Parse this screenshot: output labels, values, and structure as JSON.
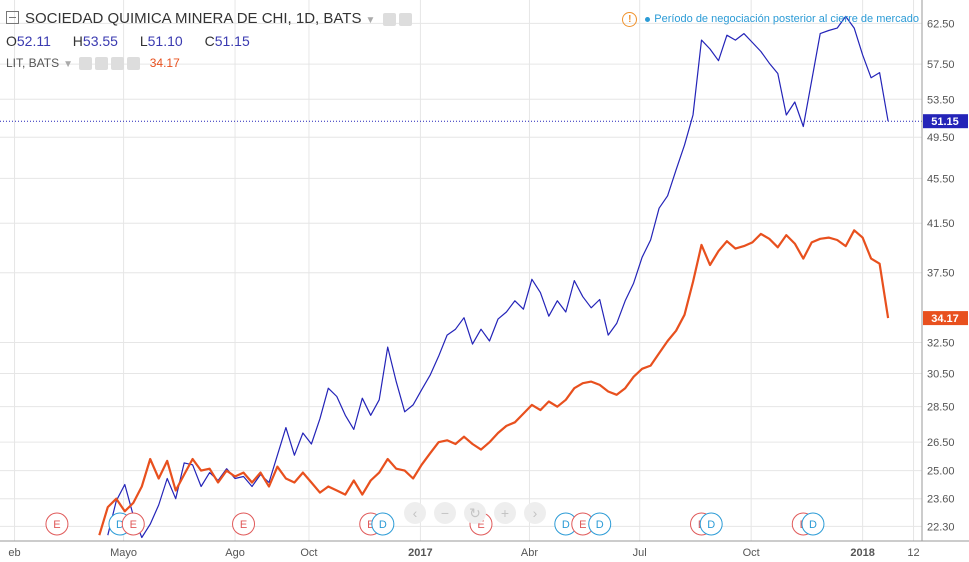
{
  "header": {
    "title": "SOCIEDAD QUIMICA MINERA DE CHI, 1D, BATS",
    "ohlc": {
      "o_label": "O",
      "o": "52.11",
      "h_label": "H",
      "h": "53.55",
      "l_label": "L",
      "l": "51.10",
      "c_label": "C",
      "c": "51.15"
    },
    "compare_symbol": "LIT, BATS",
    "compare_value": "34.17"
  },
  "notice": {
    "warn_glyph": "!",
    "text": "Período de negociación posterior al cierre de mercado"
  },
  "nav_icons": [
    "chevron-left-icon",
    "zoom-out-icon",
    "reset-icon",
    "zoom-in-icon",
    "chevron-right-icon"
  ],
  "nav_glyphs": [
    "‹",
    "−",
    "↻",
    "+",
    "›"
  ],
  "colors": {
    "sqm": "#2424b8",
    "lit": "#e8501e",
    "grid": "#e6e6e6",
    "event_e": "#e05a5a",
    "event_d": "#2b9bd6"
  },
  "chart_data": {
    "type": "line",
    "title": "",
    "x_tick_labels": [
      "eb",
      "Mayo",
      "Ago",
      "Oct",
      "2017",
      "Abr",
      "Jul",
      "Oct",
      "2018",
      "12"
    ],
    "y_tick_labels": [
      "62.50",
      "57.50",
      "53.50",
      "49.50",
      "45.50",
      "41.50",
      "37.50",
      "32.50",
      "30.50",
      "28.50",
      "26.50",
      "25.00",
      "23.60",
      "22.30"
    ],
    "y_axis_scale": "log",
    "ylim": [
      22.0,
      64.5
    ],
    "grid": true,
    "series": [
      {
        "name": "SOCIEDAD QUIMICA MINERA DE CHI",
        "color": "#2424b8",
        "last_label": "51.15",
        "values": [
          [
            "2016-04-18",
            21.9
          ],
          [
            "2016-04-25",
            23.5
          ],
          [
            "2016-05-02",
            24.3
          ],
          [
            "2016-05-09",
            22.8
          ],
          [
            "2016-05-16",
            21.8
          ],
          [
            "2016-05-23",
            22.4
          ],
          [
            "2016-05-30",
            23.3
          ],
          [
            "2016-06-06",
            24.6
          ],
          [
            "2016-06-13",
            23.6
          ],
          [
            "2016-06-20",
            25.4
          ],
          [
            "2016-06-27",
            25.3
          ],
          [
            "2016-07-04",
            24.2
          ],
          [
            "2016-07-11",
            24.9
          ],
          [
            "2016-07-18",
            24.5
          ],
          [
            "2016-07-25",
            25.1
          ],
          [
            "2016-08-01",
            24.6
          ],
          [
            "2016-08-08",
            24.7
          ],
          [
            "2016-08-15",
            24.2
          ],
          [
            "2016-08-22",
            24.8
          ],
          [
            "2016-08-29",
            24.4
          ],
          [
            "2016-09-05",
            25.8
          ],
          [
            "2016-09-12",
            27.3
          ],
          [
            "2016-09-19",
            25.8
          ],
          [
            "2016-09-26",
            27.0
          ],
          [
            "2016-10-03",
            26.4
          ],
          [
            "2016-10-10",
            27.8
          ],
          [
            "2016-10-17",
            29.6
          ],
          [
            "2016-10-24",
            29.1
          ],
          [
            "2016-10-31",
            28.0
          ],
          [
            "2016-11-07",
            27.2
          ],
          [
            "2016-11-14",
            29.0
          ],
          [
            "2016-11-21",
            28.0
          ],
          [
            "2016-11-28",
            28.9
          ],
          [
            "2016-12-05",
            32.2
          ],
          [
            "2016-12-12",
            30.0
          ],
          [
            "2016-12-19",
            28.2
          ],
          [
            "2016-12-26",
            28.6
          ],
          [
            "2017-01-02",
            29.5
          ],
          [
            "2017-01-09",
            30.4
          ],
          [
            "2017-01-16",
            31.6
          ],
          [
            "2017-01-23",
            33.0
          ],
          [
            "2017-01-30",
            33.4
          ],
          [
            "2017-02-06",
            34.2
          ],
          [
            "2017-02-13",
            32.4
          ],
          [
            "2017-02-20",
            33.4
          ],
          [
            "2017-02-27",
            32.6
          ],
          [
            "2017-03-06",
            34.1
          ],
          [
            "2017-03-13",
            34.6
          ],
          [
            "2017-03-20",
            35.4
          ],
          [
            "2017-03-27",
            34.8
          ],
          [
            "2017-04-03",
            37.0
          ],
          [
            "2017-04-10",
            36.0
          ],
          [
            "2017-04-17",
            34.3
          ],
          [
            "2017-04-24",
            35.4
          ],
          [
            "2017-05-01",
            34.6
          ],
          [
            "2017-05-08",
            36.9
          ],
          [
            "2017-05-15",
            35.7
          ],
          [
            "2017-05-22",
            34.9
          ],
          [
            "2017-05-29",
            35.5
          ],
          [
            "2017-06-05",
            33.0
          ],
          [
            "2017-06-12",
            33.8
          ],
          [
            "2017-06-19",
            35.4
          ],
          [
            "2017-06-26",
            36.7
          ],
          [
            "2017-07-03",
            38.7
          ],
          [
            "2017-07-10",
            40.1
          ],
          [
            "2017-07-17",
            42.8
          ],
          [
            "2017-07-24",
            43.9
          ],
          [
            "2017-07-31",
            46.3
          ],
          [
            "2017-08-07",
            48.7
          ],
          [
            "2017-08-14",
            51.8
          ],
          [
            "2017-08-21",
            60.4
          ],
          [
            "2017-08-28",
            59.3
          ],
          [
            "2017-09-04",
            57.9
          ],
          [
            "2017-09-11",
            61.0
          ],
          [
            "2017-09-18",
            60.4
          ],
          [
            "2017-09-25",
            61.2
          ],
          [
            "2017-10-02",
            60.1
          ],
          [
            "2017-10-09",
            59.0
          ],
          [
            "2017-10-16",
            57.6
          ],
          [
            "2017-10-23",
            56.4
          ],
          [
            "2017-10-30",
            51.8
          ],
          [
            "2017-11-06",
            53.2
          ],
          [
            "2017-11-13",
            50.6
          ],
          [
            "2017-11-20",
            55.6
          ],
          [
            "2017-11-27",
            61.2
          ],
          [
            "2017-12-04",
            61.6
          ],
          [
            "2017-12-11",
            61.9
          ],
          [
            "2017-12-18",
            63.4
          ],
          [
            "2017-12-25",
            61.9
          ],
          [
            "2018-01-01",
            58.6
          ],
          [
            "2018-01-08",
            55.9
          ],
          [
            "2018-01-15",
            56.5
          ],
          [
            "2018-01-22",
            51.15
          ]
        ]
      },
      {
        "name": "LIT, BATS",
        "color": "#e8501e",
        "last_label": "34.17",
        "values": [
          [
            "2016-04-11",
            21.9
          ],
          [
            "2016-04-18",
            23.2
          ],
          [
            "2016-04-25",
            23.6
          ],
          [
            "2016-05-02",
            23.0
          ],
          [
            "2016-05-09",
            23.4
          ],
          [
            "2016-05-16",
            24.2
          ],
          [
            "2016-05-23",
            25.6
          ],
          [
            "2016-05-30",
            24.6
          ],
          [
            "2016-06-06",
            25.5
          ],
          [
            "2016-06-13",
            24.0
          ],
          [
            "2016-06-20",
            24.8
          ],
          [
            "2016-06-27",
            25.6
          ],
          [
            "2016-07-04",
            25.0
          ],
          [
            "2016-07-11",
            25.1
          ],
          [
            "2016-07-18",
            24.4
          ],
          [
            "2016-07-25",
            25.0
          ],
          [
            "2016-08-01",
            24.7
          ],
          [
            "2016-08-08",
            24.9
          ],
          [
            "2016-08-15",
            24.4
          ],
          [
            "2016-08-22",
            24.9
          ],
          [
            "2016-08-29",
            24.2
          ],
          [
            "2016-09-05",
            25.2
          ],
          [
            "2016-09-12",
            24.6
          ],
          [
            "2016-09-19",
            24.4
          ],
          [
            "2016-09-26",
            24.9
          ],
          [
            "2016-10-03",
            24.4
          ],
          [
            "2016-10-10",
            23.9
          ],
          [
            "2016-10-17",
            24.2
          ],
          [
            "2016-10-24",
            24.0
          ],
          [
            "2016-10-31",
            23.8
          ],
          [
            "2016-11-07",
            24.5
          ],
          [
            "2016-11-14",
            23.8
          ],
          [
            "2016-11-21",
            24.5
          ],
          [
            "2016-11-28",
            24.9
          ],
          [
            "2016-12-05",
            25.6
          ],
          [
            "2016-12-12",
            25.1
          ],
          [
            "2016-12-19",
            25.0
          ],
          [
            "2016-12-26",
            24.6
          ],
          [
            "2017-01-02",
            25.3
          ],
          [
            "2017-01-09",
            25.9
          ],
          [
            "2017-01-16",
            26.5
          ],
          [
            "2017-01-23",
            26.6
          ],
          [
            "2017-01-30",
            26.4
          ],
          [
            "2017-02-06",
            26.8
          ],
          [
            "2017-02-13",
            26.4
          ],
          [
            "2017-02-20",
            26.1
          ],
          [
            "2017-02-27",
            26.5
          ],
          [
            "2017-03-06",
            27.0
          ],
          [
            "2017-03-13",
            27.4
          ],
          [
            "2017-03-20",
            27.6
          ],
          [
            "2017-03-27",
            28.1
          ],
          [
            "2017-04-03",
            28.6
          ],
          [
            "2017-04-10",
            28.3
          ],
          [
            "2017-04-17",
            28.8
          ],
          [
            "2017-04-24",
            28.5
          ],
          [
            "2017-05-01",
            28.9
          ],
          [
            "2017-05-08",
            29.6
          ],
          [
            "2017-05-15",
            29.9
          ],
          [
            "2017-05-22",
            30.0
          ],
          [
            "2017-05-29",
            29.8
          ],
          [
            "2017-06-05",
            29.4
          ],
          [
            "2017-06-12",
            29.2
          ],
          [
            "2017-06-19",
            29.6
          ],
          [
            "2017-06-26",
            30.3
          ],
          [
            "2017-07-03",
            30.8
          ],
          [
            "2017-07-10",
            31.0
          ],
          [
            "2017-07-17",
            31.8
          ],
          [
            "2017-07-24",
            32.6
          ],
          [
            "2017-07-31",
            33.3
          ],
          [
            "2017-08-07",
            34.4
          ],
          [
            "2017-08-14",
            36.8
          ],
          [
            "2017-08-21",
            39.7
          ],
          [
            "2017-08-28",
            38.1
          ],
          [
            "2017-09-04",
            39.2
          ],
          [
            "2017-09-11",
            40.0
          ],
          [
            "2017-09-18",
            39.4
          ],
          [
            "2017-09-25",
            39.6
          ],
          [
            "2017-10-02",
            39.9
          ],
          [
            "2017-10-09",
            40.6
          ],
          [
            "2017-10-16",
            40.2
          ],
          [
            "2017-10-23",
            39.5
          ],
          [
            "2017-10-30",
            40.5
          ],
          [
            "2017-11-06",
            39.8
          ],
          [
            "2017-11-13",
            38.6
          ],
          [
            "2017-11-20",
            39.9
          ],
          [
            "2017-11-27",
            40.2
          ],
          [
            "2017-12-04",
            40.3
          ],
          [
            "2017-12-11",
            40.1
          ],
          [
            "2017-12-18",
            39.6
          ],
          [
            "2017-12-25",
            40.9
          ],
          [
            "2018-01-01",
            40.3
          ],
          [
            "2018-01-08",
            38.6
          ],
          [
            "2018-01-15",
            38.2
          ],
          [
            "2018-01-22",
            34.17
          ]
        ]
      }
    ],
    "current_price_line": "51.15",
    "events": [
      {
        "letter": "E",
        "date": "2016-03-07"
      },
      {
        "letter": "D",
        "date": "2016-04-28"
      },
      {
        "letter": "E",
        "date": "2016-05-09"
      },
      {
        "letter": "E",
        "date": "2016-08-08"
      },
      {
        "letter": "E",
        "date": "2016-11-21"
      },
      {
        "letter": "D",
        "date": "2016-12-01"
      },
      {
        "letter": "E",
        "date": "2017-02-20"
      },
      {
        "letter": "D",
        "date": "2017-05-01"
      },
      {
        "letter": "E",
        "date": "2017-05-15"
      },
      {
        "letter": "D",
        "date": "2017-05-29"
      },
      {
        "letter": "E",
        "date": "2017-08-21"
      },
      {
        "letter": "D",
        "date": "2017-08-29"
      },
      {
        "letter": "E",
        "date": "2017-11-13"
      },
      {
        "letter": "D",
        "date": "2017-11-21"
      }
    ]
  }
}
